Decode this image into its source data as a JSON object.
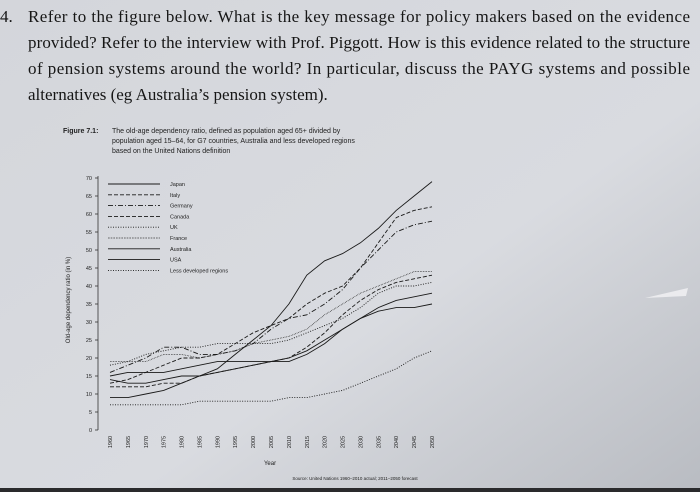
{
  "question": {
    "number": "4.",
    "lines": [
      "Refer to the figure below. What is the key message for policy makers based on the evidence",
      "provided? Refer to the interview with Prof. Piggott. How is this evidence related to the structure",
      "of pension systems around the world? In particular, discuss the PAYG systems and possible",
      "alternatives (eg Australia’s pension system)."
    ]
  },
  "figure": {
    "label": "Figure 7.1:",
    "caption_lines": [
      "The old-age dependency ratio, defined as population aged 65+ divided by",
      "population aged 15–64, for G7 countries, Australia and less developed regions",
      "based on the United Nations definition"
    ],
    "source": "Source: United Nations 1960–2010 actual; 2011–2050 forecast"
  },
  "chart_data": {
    "type": "line",
    "x_label": "Year",
    "y_label": "Old-age dependency ratio (in %)",
    "x": [
      1960,
      1965,
      1970,
      1975,
      1980,
      1985,
      1990,
      1995,
      2000,
      2005,
      2010,
      2015,
      2020,
      2025,
      2030,
      2035,
      2040,
      2045,
      2050
    ],
    "xlim": [
      1960,
      2050
    ],
    "xticks": [
      1960,
      1965,
      1970,
      1975,
      1980,
      1985,
      1990,
      1995,
      2000,
      2005,
      2010,
      2015,
      2020,
      2025,
      2030,
      2035,
      2040,
      2045,
      2050
    ],
    "ylim": [
      0,
      70
    ],
    "yticks": [
      0,
      5,
      10,
      15,
      20,
      25,
      30,
      35,
      40,
      45,
      50,
      55,
      60,
      65,
      70
    ],
    "series": [
      {
        "name": "Japan",
        "color": "#1a1a1a",
        "style": "solid",
        "values": [
          9,
          9,
          10,
          11,
          13,
          15,
          17,
          21,
          25,
          29,
          35,
          43,
          47,
          49,
          52,
          56,
          61,
          65,
          69
        ]
      },
      {
        "name": "Italy",
        "color": "#1a1a1a",
        "style": "dashed",
        "values": [
          13,
          14,
          16,
          18,
          20,
          20,
          21,
          24,
          27,
          29,
          31,
          35,
          38,
          40,
          45,
          52,
          59,
          61,
          62
        ]
      },
      {
        "name": "Germany",
        "color": "#1a1a1a",
        "style": "dashdot",
        "values": [
          16,
          18,
          20,
          23,
          23,
          21,
          21,
          22,
          24,
          28,
          31,
          32,
          35,
          39,
          45,
          50,
          55,
          57,
          58
        ]
      },
      {
        "name": "Canada",
        "color": "#1a1a1a",
        "style": "dashed",
        "values": [
          12,
          12,
          12,
          13,
          13,
          15,
          16,
          17,
          18,
          19,
          20,
          23,
          27,
          32,
          36,
          39,
          41,
          42,
          43
        ]
      },
      {
        "name": "UK",
        "color": "#1a1a1a",
        "style": "dotted",
        "values": [
          18,
          19,
          21,
          22,
          23,
          23,
          24,
          24,
          24,
          24,
          25,
          27,
          29,
          31,
          34,
          38,
          40,
          40,
          41
        ]
      },
      {
        "name": "France",
        "color": "#1a1a1a",
        "style": "finedotted",
        "values": [
          19,
          19,
          19,
          21,
          21,
          20,
          21,
          22,
          24,
          25,
          26,
          28,
          32,
          35,
          38,
          40,
          42,
          44,
          44
        ]
      },
      {
        "name": "Australia",
        "color": "#1a1a1a",
        "style": "solid",
        "values": [
          14,
          13,
          13,
          14,
          15,
          15,
          16,
          17,
          18,
          19,
          20,
          22,
          25,
          28,
          31,
          34,
          36,
          37,
          38
        ]
      },
      {
        "name": "USA",
        "color": "#1a1a1a",
        "style": "solid",
        "values": [
          15,
          16,
          16,
          16,
          17,
          18,
          19,
          19,
          19,
          19,
          19,
          21,
          24,
          28,
          31,
          33,
          34,
          34,
          35
        ]
      },
      {
        "name": "Less developed regions",
        "color": "#1a1a1a",
        "style": "dotted",
        "values": [
          7,
          7,
          7,
          7,
          7,
          8,
          8,
          8,
          8,
          8,
          9,
          9,
          10,
          11,
          13,
          15,
          17,
          20,
          22
        ]
      }
    ]
  }
}
